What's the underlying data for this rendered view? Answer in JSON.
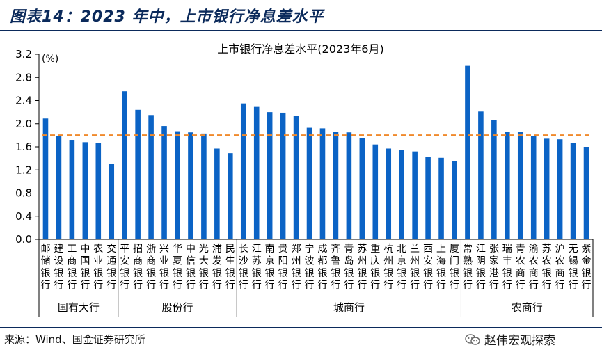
{
  "figure": {
    "title": "图表14：2023 年中，上市银行净息差水平",
    "source": "来源：Wind、国金证券研究所",
    "watermark": "赵伟宏观探索"
  },
  "chart_data": {
    "type": "bar",
    "title": "上市银行净息差水平(2023年6月)",
    "ylabel": "(%)",
    "ylim": [
      0,
      3.2
    ],
    "yticks": [
      "0.0",
      "0.4",
      "0.8",
      "1.2",
      "1.6",
      "2.0",
      "2.4",
      "2.8",
      "3.2"
    ],
    "reference_line": 1.8,
    "bar_color": "#0b63c5",
    "reference_color": "#f08a2c",
    "categories": [
      "邮储银行",
      "建设银行",
      "工商银行",
      "中国银行",
      "农业银行",
      "交通银行",
      "平安银行",
      "招商银行",
      "浙商银行",
      "兴业银行",
      "华夏银行",
      "中信银行",
      "光大银行",
      "浦发银行",
      "民生银行",
      "长沙银行",
      "江苏银行",
      "南京银行",
      "贵阳银行",
      "郑州银行",
      "宁波银行",
      "成都银行",
      "齐鲁银行",
      "青岛银行",
      "苏州银行",
      "重庆银行",
      "杭州银行",
      "北京银行",
      "兰州银行",
      "西安银行",
      "上海银行",
      "厦门银行",
      "常熟银行",
      "江阴银行",
      "张家港行",
      "瑞丰银行",
      "青农商行",
      "渝农商行",
      "苏农银行",
      "沪农商行",
      "无锡银行",
      "紫金银行"
    ],
    "values": [
      2.09,
      1.79,
      1.72,
      1.68,
      1.67,
      1.31,
      2.56,
      2.24,
      2.15,
      1.96,
      1.87,
      1.85,
      1.83,
      1.57,
      1.49,
      2.35,
      2.29,
      2.2,
      2.19,
      2.14,
      1.93,
      1.92,
      1.86,
      1.85,
      1.75,
      1.64,
      1.57,
      1.55,
      1.52,
      1.43,
      1.41,
      1.35,
      3.0,
      2.21,
      2.06,
      1.86,
      1.86,
      1.79,
      1.74,
      1.73,
      1.67,
      1.6
    ],
    "groups": [
      {
        "name": "国有大行",
        "count": 6
      },
      {
        "name": "股份行",
        "count": 9
      },
      {
        "name": "城商行",
        "count": 17
      },
      {
        "name": "农商行",
        "count": 10
      }
    ]
  }
}
